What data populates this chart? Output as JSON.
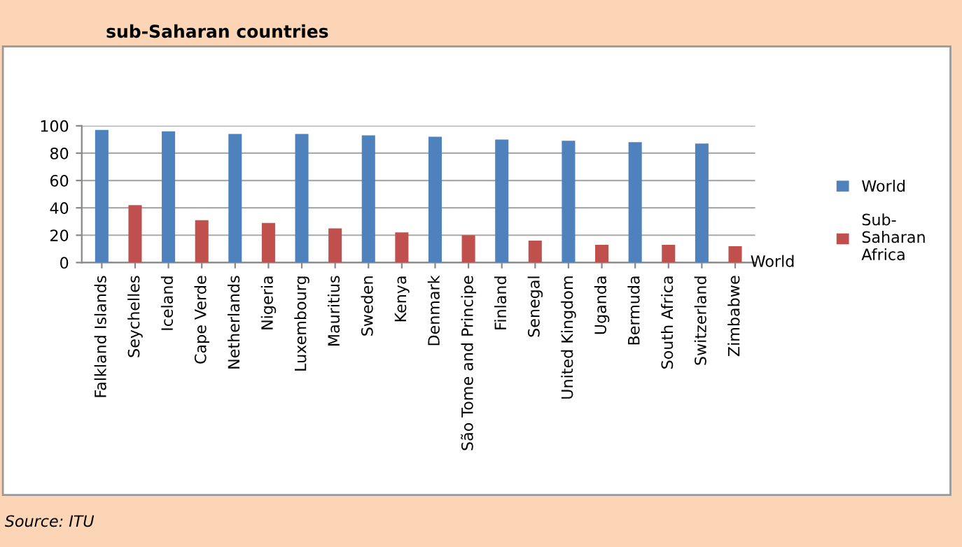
{
  "chart_data": {
    "type": "bar",
    "title": "sub-Saharan countries",
    "categories": [
      "Falkland Islands",
      "Seychelles",
      "Iceland",
      "Cape Verde",
      "Netherlands",
      "Nigeria",
      "Luxembourg",
      "Mauritius",
      "Sweden",
      "Kenya",
      "Denmark",
      "São Tome and Principe",
      "Finland",
      "Senegal",
      "United Kingdom",
      "Uganda",
      "Bermuda",
      "South Africa",
      "Switzerland",
      "Zimbabwe"
    ],
    "series": [
      {
        "name": "World",
        "color": "#4f81bd",
        "values": [
          97,
          null,
          96,
          null,
          94,
          null,
          94,
          null,
          93,
          null,
          92,
          null,
          90,
          null,
          89,
          null,
          88,
          null,
          87,
          null
        ]
      },
      {
        "name": "Sub-\nSaharan\nAfrica",
        "color": "#c0504d",
        "values": [
          null,
          42,
          null,
          31,
          null,
          29,
          null,
          25,
          null,
          22,
          null,
          20,
          null,
          16,
          null,
          13,
          null,
          13,
          null,
          12
        ]
      }
    ],
    "ylim": [
      0,
      100
    ],
    "yticks": [
      0,
      20,
      40,
      60,
      80,
      100
    ],
    "grid": "y",
    "legend": "right",
    "annotations": [
      "World",
      "Source: ITU"
    ]
  }
}
